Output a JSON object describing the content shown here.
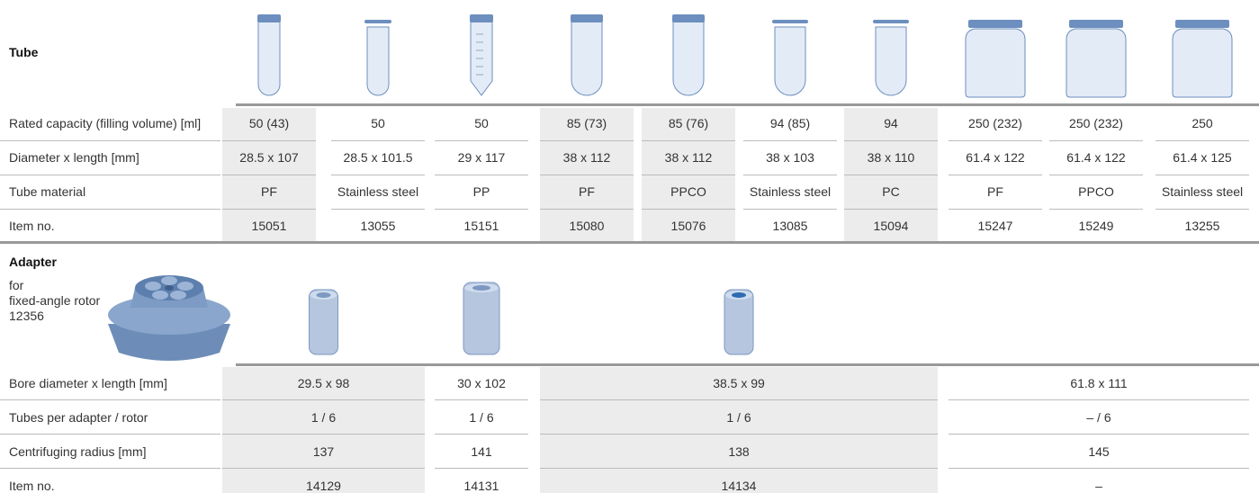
{
  "tube": {
    "title": "Tube",
    "row_labels": [
      "Rated capacity (filling volume) [ml]",
      "Diameter x length [mm]",
      "Tube material",
      "Item no."
    ],
    "columns": [
      [
        "50 (43)",
        "28.5 x 107",
        "PF",
        "15051"
      ],
      [
        "50",
        "28.5 x 101.5",
        "Stainless steel",
        "13055"
      ],
      [
        "50",
        "29 x 117",
        "PP",
        "15151"
      ],
      [
        "85 (73)",
        "38 x 112",
        "PF",
        "15080"
      ],
      [
        "85 (76)",
        "38 x 112",
        "PPCO",
        "15076"
      ],
      [
        "94 (85)",
        "38 x 103",
        "Stainless steel",
        "13085"
      ],
      [
        "94",
        "38 x 110",
        "PC",
        "15094"
      ],
      [
        "250 (232)",
        "61.4 x 122",
        "PF",
        "15247"
      ],
      [
        "250 (232)",
        "61.4 x 122",
        "PPCO",
        "15249"
      ],
      [
        "250",
        "61.4 x 125",
        "Stainless steel",
        "13255"
      ]
    ]
  },
  "adapter": {
    "title": "Adapter",
    "rotor_label": [
      "for",
      "fixed-angle rotor",
      "12356"
    ],
    "row_labels": [
      "Bore diameter x length [mm]",
      "Tubes per adapter / rotor",
      "Centrifuging radius [mm]",
      "Item no."
    ],
    "groups": [
      [
        "29.5 x 98",
        "1 / 6",
        "137",
        "14129"
      ],
      [
        "30 x 102",
        "1 / 6",
        "141",
        "14131"
      ],
      [
        "38.5 x 99",
        "1 / 6",
        "138",
        "14134"
      ],
      [
        "61.8 x 111",
        "– / 6",
        "145",
        "–"
      ]
    ]
  }
}
